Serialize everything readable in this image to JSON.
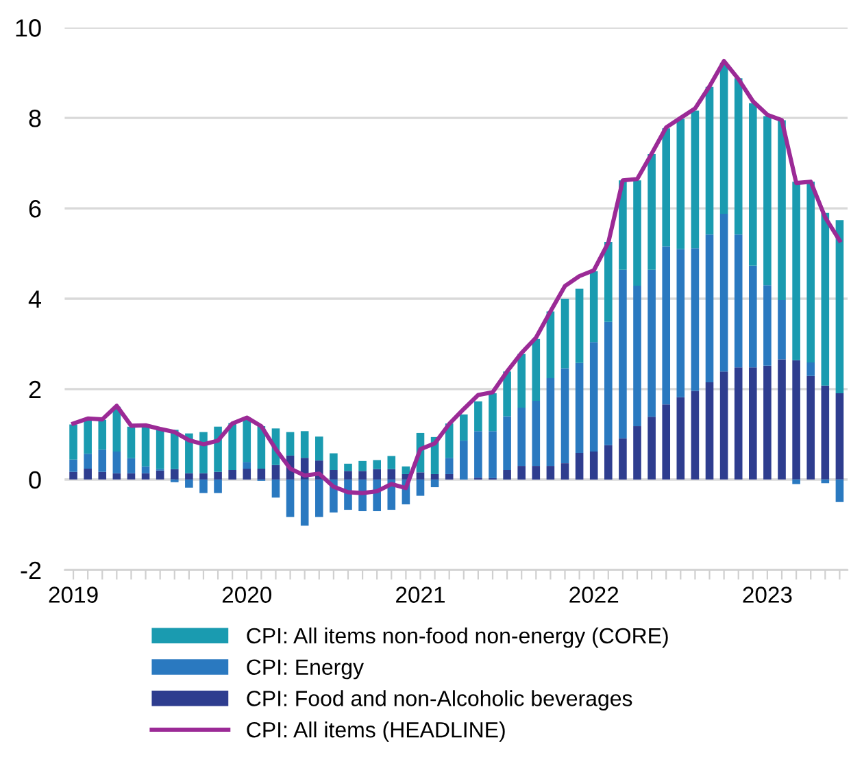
{
  "chart_data": {
    "type": "bar",
    "stacked": true,
    "categories": [
      "2019",
      null,
      null,
      null,
      null,
      null,
      null,
      null,
      null,
      null,
      null,
      null,
      "2020",
      null,
      null,
      null,
      null,
      null,
      null,
      null,
      null,
      null,
      null,
      null,
      "2021",
      null,
      null,
      null,
      null,
      null,
      null,
      null,
      null,
      null,
      null,
      null,
      "2022",
      null,
      null,
      null,
      null,
      null,
      null,
      null,
      null,
      null,
      null,
      null,
      "2023",
      null,
      null,
      null,
      null,
      null
    ],
    "series": [
      {
        "name": "CPI: Food and non-Alcoholic beverages",
        "color": "#2e3d8f",
        "values": [
          0.17,
          0.24,
          0.17,
          0.14,
          0.14,
          0.14,
          0.2,
          0.23,
          0.14,
          0.14,
          0.17,
          0.21,
          0.24,
          0.24,
          0.32,
          0.53,
          0.48,
          0.42,
          0.21,
          0.19,
          0.19,
          0.23,
          0.23,
          0.12,
          0.16,
          0.12,
          0.12,
          0.0,
          0.04,
          0.03,
          0.21,
          0.3,
          0.3,
          0.3,
          0.36,
          0.59,
          0.62,
          0.76,
          0.91,
          1.18,
          1.39,
          1.66,
          1.82,
          1.96,
          2.15,
          2.39,
          2.48,
          2.48,
          2.52,
          2.66,
          2.64,
          2.29,
          2.08,
          1.91
        ]
      },
      {
        "name": "CPI: Energy",
        "color": "#2a79c0",
        "values": [
          0.27,
          0.33,
          0.49,
          0.48,
          0.33,
          0.15,
          0.03,
          -0.06,
          -0.18,
          -0.3,
          -0.3,
          0.0,
          0.15,
          -0.03,
          -0.4,
          -0.83,
          -1.02,
          -0.83,
          -0.73,
          -0.67,
          -0.7,
          -0.7,
          -0.67,
          -0.55,
          -0.36,
          -0.17,
          0.36,
          0.86,
          1.03,
          1.04,
          1.19,
          1.29,
          1.44,
          1.94,
          2.1,
          1.99,
          2.42,
          2.73,
          3.73,
          3.11,
          3.25,
          3.5,
          3.28,
          3.16,
          3.27,
          3.49,
          2.94,
          2.25,
          1.78,
          1.31,
          -0.1,
          0.3,
          -0.08,
          -0.5
        ]
      },
      {
        "name": "CPI: All items non-food non-energy (CORE)",
        "color": "#1a9bb0",
        "values": [
          0.78,
          0.78,
          0.66,
          0.99,
          0.7,
          0.91,
          0.87,
          0.87,
          0.88,
          0.91,
          1.0,
          1.04,
          0.96,
          0.94,
          0.81,
          0.52,
          0.59,
          0.53,
          0.37,
          0.16,
          0.22,
          0.2,
          0.29,
          0.17,
          0.87,
          0.82,
          0.76,
          0.58,
          0.66,
          0.84,
          0.99,
          1.19,
          1.37,
          1.48,
          1.54,
          1.64,
          1.57,
          1.77,
          1.98,
          2.33,
          2.56,
          2.61,
          2.88,
          3.04,
          3.27,
          3.34,
          3.46,
          3.6,
          3.74,
          3.98,
          3.95,
          4.0,
          3.82,
          3.83
        ]
      },
      {
        "name": "CPI: All items (HEADLINE)",
        "type": "line",
        "color": "#9b2a96",
        "values": [
          1.24,
          1.35,
          1.33,
          1.63,
          1.19,
          1.2,
          1.12,
          1.05,
          0.87,
          0.78,
          0.86,
          1.24,
          1.37,
          1.18,
          0.67,
          0.24,
          0.09,
          0.13,
          -0.16,
          -0.28,
          -0.3,
          -0.26,
          -0.1,
          -0.19,
          0.67,
          0.8,
          1.23,
          1.56,
          1.87,
          1.93,
          2.39,
          2.8,
          3.14,
          3.72,
          4.28,
          4.5,
          4.63,
          5.24,
          6.62,
          6.65,
          7.21,
          7.79,
          8.0,
          8.21,
          8.7,
          9.26,
          8.86,
          8.37,
          8.07,
          7.95,
          6.56,
          6.59,
          5.8,
          5.29
        ]
      }
    ],
    "ylim": [
      -2,
      10
    ],
    "yticks": [
      -2,
      0,
      2,
      4,
      6,
      8,
      10
    ],
    "grid": "y",
    "legend": "bottom"
  }
}
